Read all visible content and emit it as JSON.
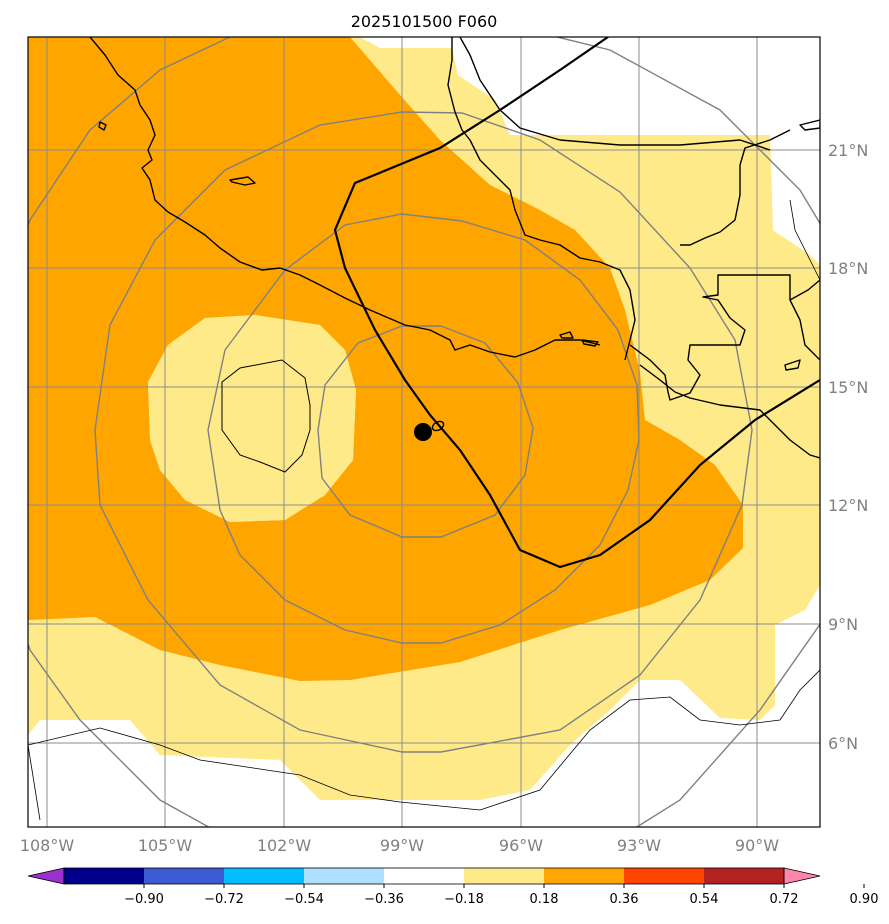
{
  "title": "2025101500 F060",
  "colors": {
    "background": "#ffffff",
    "frame": "#000000",
    "gridline": "#8c8c8c",
    "range_ring": "#808080",
    "coastline": "#000000",
    "track": "#000000",
    "storm_center": "#000000",
    "axis_label": "#808080"
  },
  "map": {
    "type": "map",
    "lon_labels": [
      "108°W",
      "105°W",
      "102°W",
      "99°W",
      "96°W",
      "93°W",
      "90°W"
    ],
    "lat_labels": [
      "21°N",
      "18°N",
      "15°N",
      "12°N",
      "9°N",
      "6°N"
    ],
    "lon_values": [
      -108,
      -105,
      -102,
      -99,
      -96,
      -93,
      -90
    ],
    "lat_values": [
      21,
      18,
      15,
      12,
      9,
      6
    ],
    "lon_range": [
      -108.5,
      -88.5
    ],
    "lat_range": [
      3.9,
      23.9
    ],
    "storm_center": {
      "lon": -98.5,
      "lat": 13.9
    },
    "range_rings_count": 4
  },
  "colorbar": {
    "tick_labels": [
      "−0.90",
      "−0.72",
      "−0.54",
      "−0.36",
      "−0.18",
      "0.18",
      "0.36",
      "0.54",
      "0.72",
      "0.90"
    ],
    "ticks": [
      -0.9,
      -0.72,
      -0.54,
      -0.36,
      -0.18,
      0.18,
      0.36,
      0.54,
      0.72,
      0.9
    ],
    "colors": [
      "#9b30d0",
      "#00008b",
      "#3a5bd3",
      "#00bfff",
      "#b0e0ff",
      "#ffffff",
      "#ffea8a",
      "#ffa500",
      "#ff4500",
      "#b22222",
      "#ff85aa"
    ],
    "extend": "both"
  }
}
